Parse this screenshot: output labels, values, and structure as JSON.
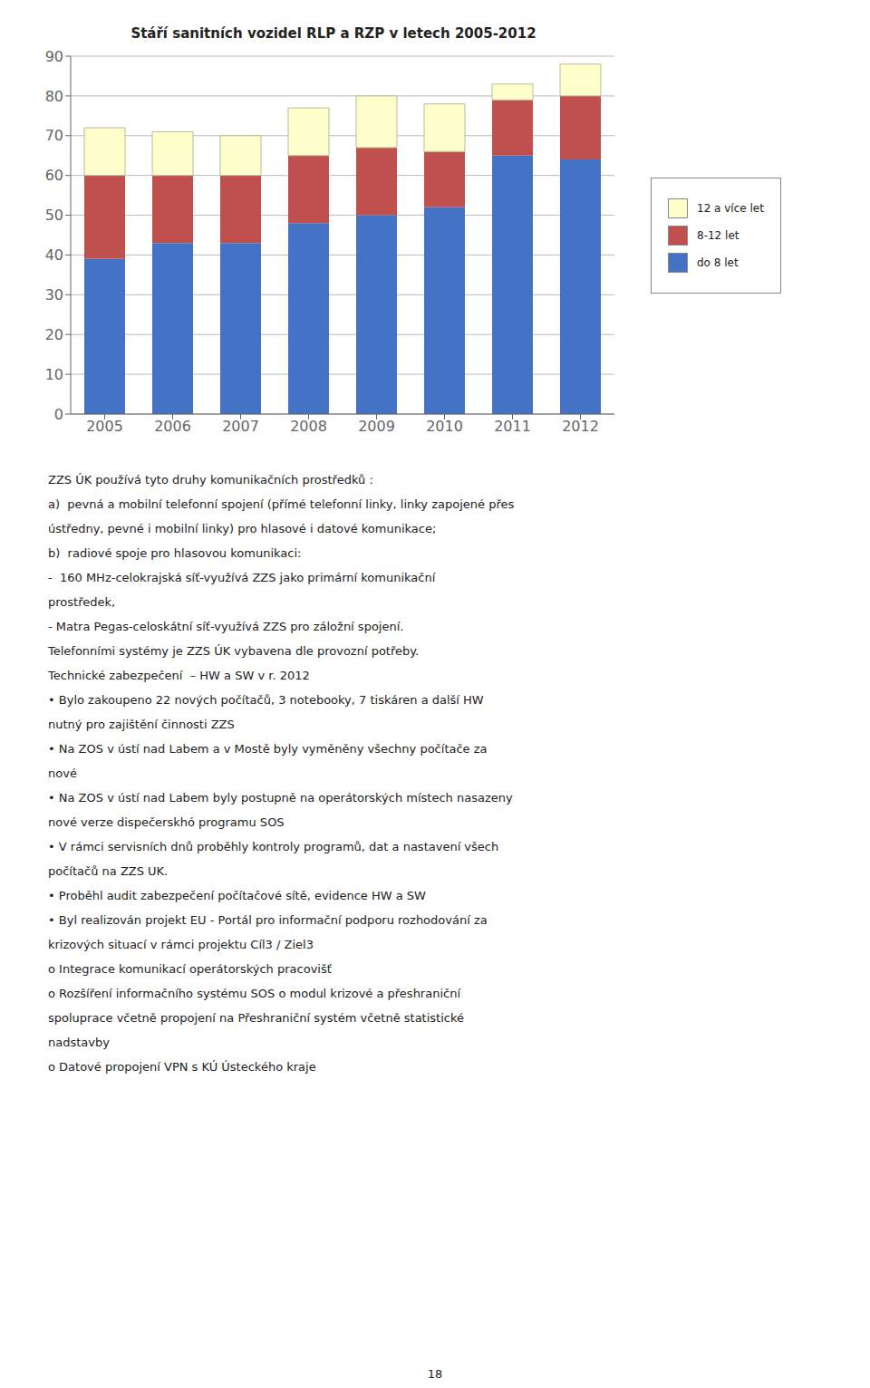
{
  "chart_data": {
    "type": "bar",
    "title": "Stáří sanitních vozidel RLP a RZP v letech 2005-2012",
    "categories": [
      "2005",
      "2006",
      "2007",
      "2008",
      "2009",
      "2010",
      "2011",
      "2012"
    ],
    "series": [
      {
        "name": "do 8 let",
        "color": "#4472C4",
        "values": [
          39,
          43,
          43,
          48,
          50,
          52,
          65,
          64
        ]
      },
      {
        "name": "8-12 let",
        "color": "#C0504D",
        "values": [
          21,
          17,
          17,
          17,
          17,
          14,
          14,
          16
        ]
      },
      {
        "name": "12 a více let",
        "color": "#FFFFCC",
        "values": [
          12,
          11,
          10,
          12,
          13,
          12,
          4,
          8
        ]
      }
    ],
    "stacked": true,
    "ylim": [
      0,
      90
    ],
    "yticks": [
      0,
      10,
      20,
      30,
      40,
      50,
      60,
      70,
      80,
      90
    ],
    "grid": true,
    "legend": "right",
    "annotations": [
      "ZZS ÚK používá tyto druhy komunikačních prostředků :",
      "a)  pevná a mobilní telefonní spojení (přímé telefonní linky, linky zapojené přes",
      "ústředny, pevné i mobilní linky) pro hlasové i datové komunikace;",
      "b)  radiové spoje pro hlasovou komunikaci:",
      "-  160 MHz-celokrajská síť-využívá ZZS jako primární komunikační",
      "prostředek,",
      "- Matra Pegas-celoskátní síť-využívá ZZS pro záložní spojení.",
      "Telefonními systémy je ZZS ÚK vybavena dle provozní potřeby.",
      "Technické zabezpečení  – HW a SW v r. 2012",
      "• Bylo zakoupeno 22 nových počítačů, 3 notebooky, 7 tiskáren a další HW",
      "nutný pro zajištění činnosti ZZS",
      "• Na ZOS v ústí nad Labem a v Mostě byly vyměněny všechny počítače za",
      "nové",
      "• Na ZOS v ústí nad Labem byly postupně na operátorských místech nasazeny",
      "nové verze dispečerskhó programu SOS",
      "• V rámci servisních dnů proběhly kontroly programů, dat a nastavení všech",
      "počítačů na ZZS UK.",
      "• Proběhl audit zabezpečení počítačové sítě, evidence HW a SW",
      "• Byl realizován projekt EU - Portál pro informační podporu rozhodování za",
      "krizových situací v rámci projektu Cíl3 / Ziel3",
      "o Integrace komunikací operátorských pracovišť",
      "o Rozšíření informačního systému SOS o modul krizové a přeshraniční",
      "spoluprace včetně propojení na Přeshraniční systém včetně statistické",
      "nadstavby",
      "o Datové propojení VPN s KÚ Ústeckého kraje",
      "18"
    ]
  }
}
